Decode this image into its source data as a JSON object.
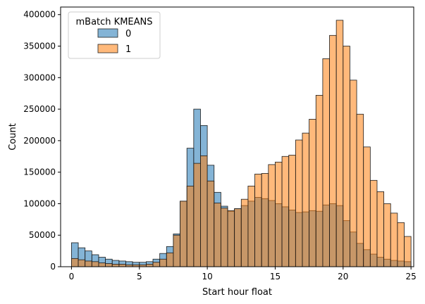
{
  "chart_data": {
    "type": "histogram",
    "xlabel": "Start hour float",
    "ylabel": "Count",
    "xlim": [
      -0.8,
      25.2
    ],
    "ylim": [
      0,
      412000
    ],
    "bin_width": 0.5,
    "bin_start": 0,
    "x_ticks": [
      0,
      5,
      10,
      15,
      20,
      25
    ],
    "y_ticks": [
      0,
      50000,
      100000,
      150000,
      200000,
      250000,
      300000,
      350000,
      400000
    ],
    "legend": {
      "title": "mBatch KMEANS",
      "placement": "upper-left"
    },
    "series": [
      {
        "name": "0",
        "color": "#1f77b4",
        "values": [
          38000,
          30000,
          25000,
          19000,
          15000,
          12000,
          10000,
          9000,
          8000,
          7000,
          7000,
          8000,
          12000,
          21000,
          32000,
          52000,
          104000,
          188000,
          250000,
          224000,
          161000,
          118000,
          96000,
          88000,
          92000,
          97000,
          104000,
          110000,
          108000,
          105000,
          100000,
          95000,
          90000,
          86000,
          87000,
          89000,
          88000,
          98000,
          100000,
          97000,
          73000,
          55000,
          37000,
          27000,
          20000,
          15000,
          12000,
          10000,
          9000,
          8000
        ]
      },
      {
        "name": "1",
        "color": "#ff7f0e",
        "values": [
          13000,
          11000,
          9000,
          8000,
          6000,
          5000,
          4000,
          4000,
          3000,
          3000,
          3000,
          4000,
          7000,
          12000,
          22000,
          50000,
          104000,
          128000,
          164000,
          176000,
          136000,
          101000,
          93000,
          89000,
          92000,
          107000,
          128000,
          147000,
          148000,
          162000,
          166000,
          175000,
          177000,
          201000,
          212000,
          234000,
          272000,
          330000,
          367000,
          391000,
          350000,
          296000,
          242000,
          190000,
          137000,
          119000,
          100000,
          85000,
          70000,
          48000
        ]
      }
    ]
  }
}
